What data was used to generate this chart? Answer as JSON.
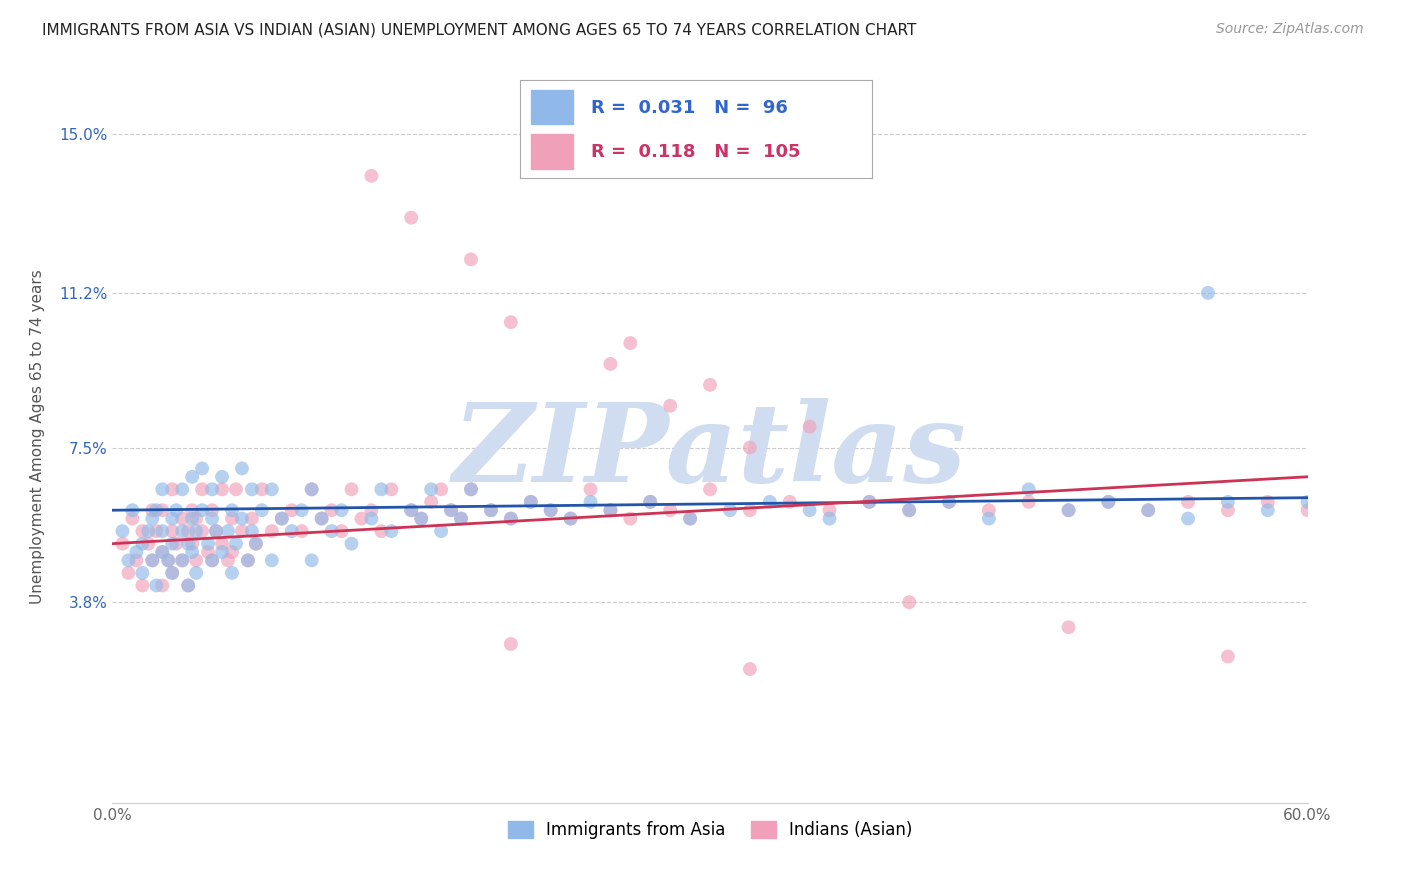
{
  "title": "IMMIGRANTS FROM ASIA VS INDIAN (ASIAN) UNEMPLOYMENT AMONG AGES 65 TO 74 YEARS CORRELATION CHART",
  "source": "Source: ZipAtlas.com",
  "ylabel": "Unemployment Among Ages 65 to 74 years",
  "xlim": [
    0.0,
    0.6
  ],
  "ylim": [
    -0.01,
    0.165
  ],
  "xticks": [
    0.0,
    0.1,
    0.2,
    0.3,
    0.4,
    0.5,
    0.6
  ],
  "xticklabels": [
    "0.0%",
    "",
    "",
    "",
    "",
    "",
    "60.0%"
  ],
  "ytick_positions": [
    0.038,
    0.075,
    0.112,
    0.15
  ],
  "ytick_labels": [
    "3.8%",
    "7.5%",
    "11.2%",
    "15.0%"
  ],
  "grid_color": "#cccccc",
  "background_color": "#ffffff",
  "watermark": "ZIPatlas",
  "watermark_color": "#d0ddf0",
  "series": [
    {
      "label": "Immigrants from Asia",
      "R": 0.031,
      "N": 96,
      "color": "#90b8e8",
      "line_color": "#2255aa"
    },
    {
      "label": "Indians (Asian)",
      "R": 0.118,
      "N": 105,
      "color": "#f0a0b8",
      "line_color": "#cc3355"
    }
  ],
  "blue_x": [
    0.005,
    0.008,
    0.01,
    0.012,
    0.015,
    0.015,
    0.018,
    0.02,
    0.02,
    0.022,
    0.022,
    0.025,
    0.025,
    0.025,
    0.028,
    0.03,
    0.03,
    0.03,
    0.032,
    0.035,
    0.035,
    0.035,
    0.038,
    0.038,
    0.04,
    0.04,
    0.04,
    0.042,
    0.042,
    0.045,
    0.045,
    0.048,
    0.05,
    0.05,
    0.05,
    0.052,
    0.055,
    0.055,
    0.058,
    0.06,
    0.06,
    0.062,
    0.065,
    0.065,
    0.068,
    0.07,
    0.07,
    0.072,
    0.075,
    0.08,
    0.08,
    0.085,
    0.09,
    0.095,
    0.1,
    0.1,
    0.105,
    0.11,
    0.115,
    0.12,
    0.13,
    0.135,
    0.14,
    0.15,
    0.155,
    0.16,
    0.165,
    0.17,
    0.175,
    0.18,
    0.19,
    0.2,
    0.21,
    0.22,
    0.23,
    0.24,
    0.25,
    0.27,
    0.29,
    0.31,
    0.33,
    0.35,
    0.36,
    0.38,
    0.4,
    0.42,
    0.44,
    0.46,
    0.48,
    0.5,
    0.52,
    0.54,
    0.56,
    0.58,
    0.6,
    0.55
  ],
  "blue_y": [
    0.055,
    0.048,
    0.06,
    0.05,
    0.052,
    0.045,
    0.055,
    0.048,
    0.058,
    0.06,
    0.042,
    0.055,
    0.05,
    0.065,
    0.048,
    0.058,
    0.052,
    0.045,
    0.06,
    0.055,
    0.048,
    0.065,
    0.052,
    0.042,
    0.058,
    0.05,
    0.068,
    0.055,
    0.045,
    0.06,
    0.07,
    0.052,
    0.058,
    0.048,
    0.065,
    0.055,
    0.05,
    0.068,
    0.055,
    0.045,
    0.06,
    0.052,
    0.058,
    0.07,
    0.048,
    0.055,
    0.065,
    0.052,
    0.06,
    0.065,
    0.048,
    0.058,
    0.055,
    0.06,
    0.065,
    0.048,
    0.058,
    0.055,
    0.06,
    0.052,
    0.058,
    0.065,
    0.055,
    0.06,
    0.058,
    0.065,
    0.055,
    0.06,
    0.058,
    0.065,
    0.06,
    0.058,
    0.062,
    0.06,
    0.058,
    0.062,
    0.06,
    0.062,
    0.058,
    0.06,
    0.062,
    0.06,
    0.058,
    0.062,
    0.06,
    0.062,
    0.058,
    0.065,
    0.06,
    0.062,
    0.06,
    0.058,
    0.062,
    0.06,
    0.062,
    0.112
  ],
  "pink_x": [
    0.005,
    0.008,
    0.01,
    0.012,
    0.015,
    0.015,
    0.018,
    0.02,
    0.02,
    0.022,
    0.025,
    0.025,
    0.025,
    0.028,
    0.03,
    0.03,
    0.03,
    0.032,
    0.035,
    0.035,
    0.038,
    0.038,
    0.04,
    0.04,
    0.042,
    0.042,
    0.045,
    0.045,
    0.048,
    0.05,
    0.05,
    0.052,
    0.055,
    0.055,
    0.058,
    0.06,
    0.06,
    0.062,
    0.065,
    0.068,
    0.07,
    0.072,
    0.075,
    0.08,
    0.085,
    0.09,
    0.095,
    0.1,
    0.105,
    0.11,
    0.115,
    0.12,
    0.125,
    0.13,
    0.135,
    0.14,
    0.15,
    0.155,
    0.16,
    0.165,
    0.17,
    0.175,
    0.18,
    0.19,
    0.2,
    0.21,
    0.22,
    0.23,
    0.24,
    0.25,
    0.26,
    0.27,
    0.28,
    0.29,
    0.3,
    0.32,
    0.34,
    0.36,
    0.38,
    0.4,
    0.42,
    0.44,
    0.46,
    0.48,
    0.5,
    0.52,
    0.54,
    0.56,
    0.58,
    0.6,
    0.15,
    0.2,
    0.25,
    0.3,
    0.35,
    0.18,
    0.28,
    0.32,
    0.13,
    0.26,
    0.2,
    0.32,
    0.4,
    0.48,
    0.56
  ],
  "pink_y": [
    0.052,
    0.045,
    0.058,
    0.048,
    0.055,
    0.042,
    0.052,
    0.048,
    0.06,
    0.055,
    0.05,
    0.042,
    0.06,
    0.048,
    0.055,
    0.045,
    0.065,
    0.052,
    0.058,
    0.048,
    0.055,
    0.042,
    0.06,
    0.052,
    0.048,
    0.058,
    0.055,
    0.065,
    0.05,
    0.06,
    0.048,
    0.055,
    0.052,
    0.065,
    0.048,
    0.058,
    0.05,
    0.065,
    0.055,
    0.048,
    0.058,
    0.052,
    0.065,
    0.055,
    0.058,
    0.06,
    0.055,
    0.065,
    0.058,
    0.06,
    0.055,
    0.065,
    0.058,
    0.06,
    0.055,
    0.065,
    0.06,
    0.058,
    0.062,
    0.065,
    0.06,
    0.058,
    0.065,
    0.06,
    0.058,
    0.062,
    0.06,
    0.058,
    0.065,
    0.06,
    0.058,
    0.062,
    0.06,
    0.058,
    0.065,
    0.06,
    0.062,
    0.06,
    0.062,
    0.06,
    0.062,
    0.06,
    0.062,
    0.06,
    0.062,
    0.06,
    0.062,
    0.06,
    0.062,
    0.06,
    0.13,
    0.105,
    0.095,
    0.09,
    0.08,
    0.12,
    0.085,
    0.075,
    0.14,
    0.1,
    0.028,
    0.022,
    0.038,
    0.032,
    0.025
  ]
}
